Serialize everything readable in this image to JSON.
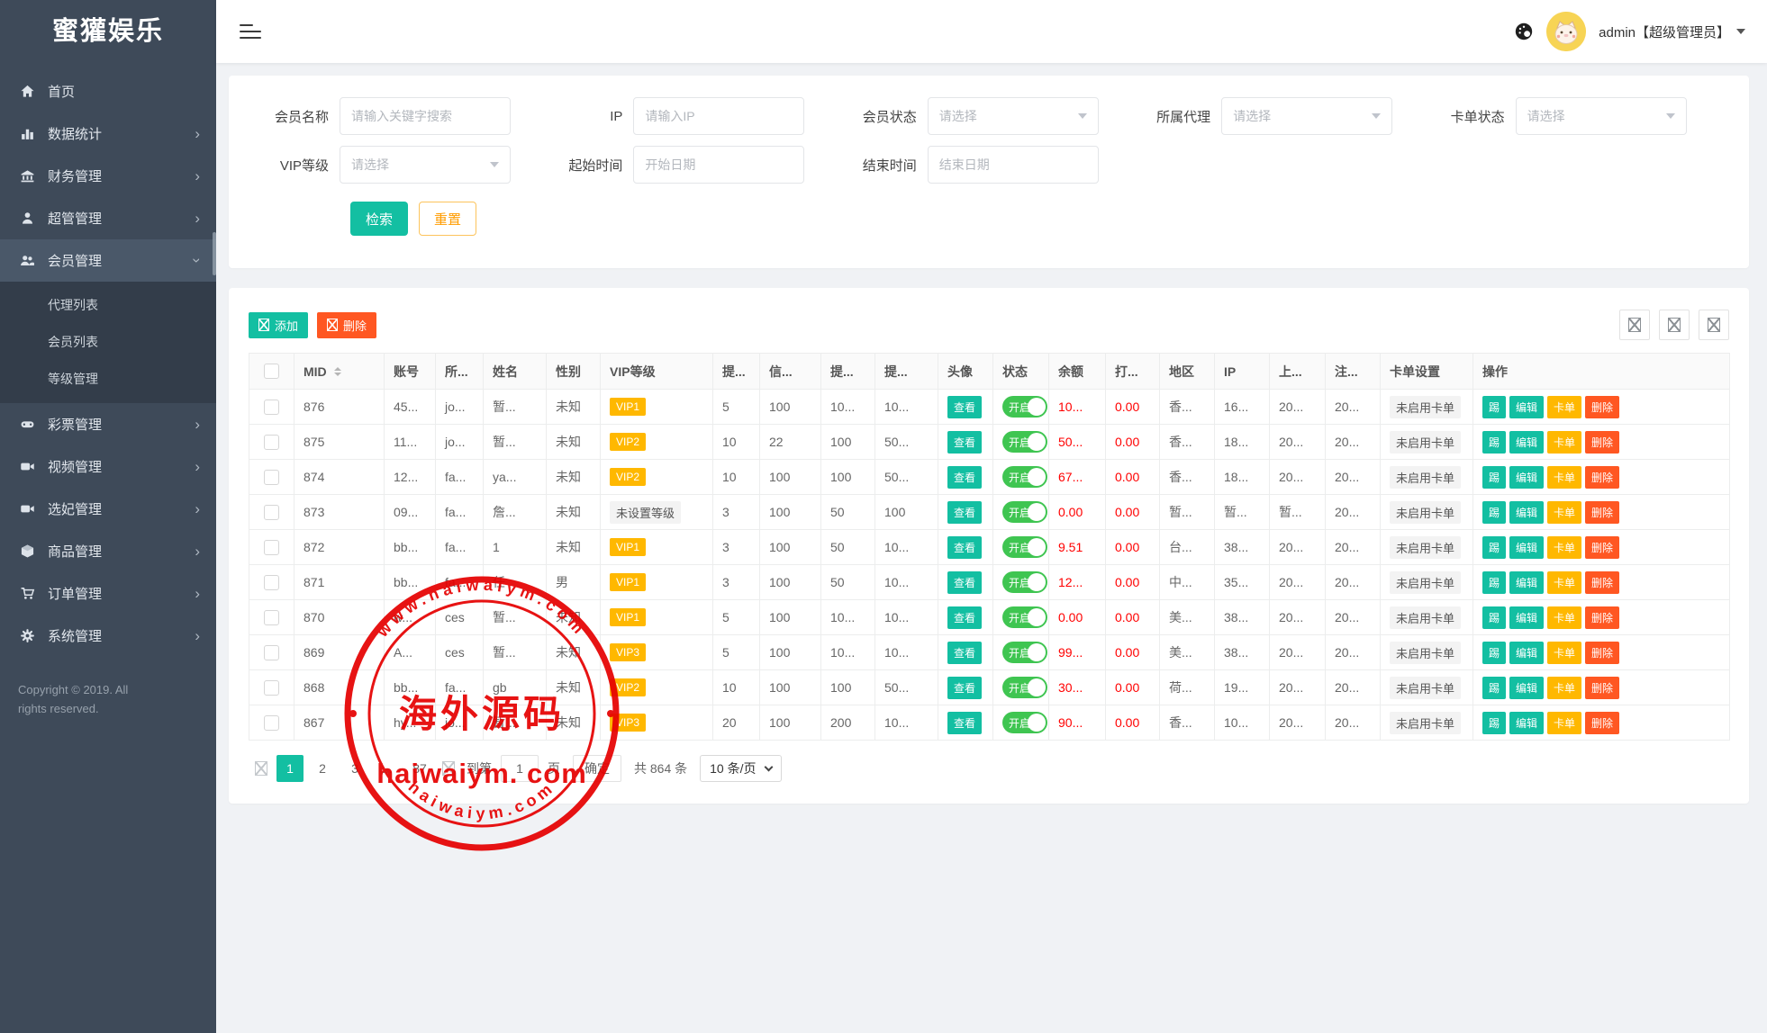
{
  "app": {
    "title": "蜜獾娱乐"
  },
  "topbar": {
    "user": "admin【超级管理员】"
  },
  "colors": {
    "teal": "#13bfa2",
    "orange_red": "#ff5722",
    "yellow": "#ffb800",
    "toggle_green": "#3fc551",
    "red_text": "#ff0000",
    "sidebar_bg": "#3e4a59",
    "seal_red": "#e60000"
  },
  "sidebar": {
    "items": [
      {
        "label": "首页",
        "icon": "home-icon"
      },
      {
        "label": "数据统计",
        "icon": "chart-icon"
      },
      {
        "label": "财务管理",
        "icon": "bank-icon"
      },
      {
        "label": "超管管理",
        "icon": "admin-icon"
      },
      {
        "label": "会员管理",
        "icon": "members-icon"
      },
      {
        "label": "彩票管理",
        "icon": "lottery-icon"
      },
      {
        "label": "视频管理",
        "icon": "video-icon"
      },
      {
        "label": "选妃管理",
        "icon": "video-icon"
      },
      {
        "label": "商品管理",
        "icon": "goods-icon"
      },
      {
        "label": "订单管理",
        "icon": "cart-icon"
      },
      {
        "label": "系统管理",
        "icon": "gear-icon"
      }
    ],
    "submenu": [
      "代理列表",
      "会员列表",
      "等级管理"
    ],
    "copyright": "Copyright © 2019. All rights reserved."
  },
  "filters": {
    "fields": [
      {
        "label": "会员名称",
        "type": "input",
        "placeholder": "请输入关键字搜索"
      },
      {
        "label": "IP",
        "type": "input",
        "placeholder": "请输入IP"
      },
      {
        "label": "会员状态",
        "type": "select",
        "placeholder": "请选择"
      },
      {
        "label": "所属代理",
        "type": "select",
        "placeholder": "请选择"
      },
      {
        "label": "卡单状态",
        "type": "select",
        "placeholder": "请选择"
      },
      {
        "label": "VIP等级",
        "type": "select",
        "placeholder": "请选择"
      },
      {
        "label": "起始时间",
        "type": "input",
        "placeholder": "开始日期"
      },
      {
        "label": "结束时间",
        "type": "input",
        "placeholder": "结束日期"
      }
    ],
    "search_label": "检索",
    "reset_label": "重置"
  },
  "table": {
    "toolbar": {
      "add_label": "添加",
      "delete_label": "删除"
    },
    "columns": [
      {
        "label": "MID",
        "sortable": true
      },
      {
        "label": "账号"
      },
      {
        "label": "所..."
      },
      {
        "label": "姓名"
      },
      {
        "label": "性别"
      },
      {
        "label": "VIP等级"
      },
      {
        "label": "提..."
      },
      {
        "label": "信..."
      },
      {
        "label": "提..."
      },
      {
        "label": "提..."
      },
      {
        "label": "头像"
      },
      {
        "label": "状态"
      },
      {
        "label": "余额"
      },
      {
        "label": "打..."
      },
      {
        "label": "地区"
      },
      {
        "label": "IP"
      },
      {
        "label": "上..."
      },
      {
        "label": "注..."
      },
      {
        "label": "卡单设置"
      },
      {
        "label": "操作"
      }
    ],
    "avatar_button": "查看",
    "status_on": "开启",
    "ops": [
      "踢",
      "编辑",
      "卡单",
      "删除"
    ],
    "rows": [
      {
        "mid": "876",
        "account": "45...",
        "agent": "jo...",
        "name": "暂...",
        "gender": "未知",
        "vip": "VIP1",
        "vip_type": "level",
        "c1": "5",
        "c2": "100",
        "c3": "10...",
        "c4": "10...",
        "balance": "10...",
        "c5": "0.00",
        "region": "香...",
        "ip": "16...",
        "c6": "20...",
        "c7": "20...",
        "card": "未启用卡单"
      },
      {
        "mid": "875",
        "account": "11...",
        "agent": "jo...",
        "name": "暂...",
        "gender": "未知",
        "vip": "VIP2",
        "vip_type": "level",
        "c1": "10",
        "c2": "22",
        "c3": "100",
        "c4": "50...",
        "balance": "50...",
        "c5": "0.00",
        "region": "香...",
        "ip": "18...",
        "c6": "20...",
        "c7": "20...",
        "card": "未启用卡单"
      },
      {
        "mid": "874",
        "account": "12...",
        "agent": "fa...",
        "name": "ya...",
        "gender": "未知",
        "vip": "VIP2",
        "vip_type": "level",
        "c1": "10",
        "c2": "100",
        "c3": "100",
        "c4": "50...",
        "balance": "67...",
        "c5": "0.00",
        "region": "香...",
        "ip": "18...",
        "c6": "20...",
        "c7": "20...",
        "card": "未启用卡单"
      },
      {
        "mid": "873",
        "account": "09...",
        "agent": "fa...",
        "name": "詹...",
        "gender": "未知",
        "vip": "未设置等级",
        "vip_type": "none",
        "c1": "3",
        "c2": "100",
        "c3": "50",
        "c4": "100",
        "balance": "0.00",
        "c5": "0.00",
        "region": "暂...",
        "ip": "暂...",
        "c6": "暂...",
        "c7": "20...",
        "card": "未启用卡单"
      },
      {
        "mid": "872",
        "account": "bb...",
        "agent": "fa...",
        "name": "1",
        "gender": "未知",
        "vip": "VIP1",
        "vip_type": "level",
        "c1": "3",
        "c2": "100",
        "c3": "50",
        "c4": "10...",
        "balance": "9.51",
        "c5": "0.00",
        "region": "台...",
        "ip": "38...",
        "c6": "20...",
        "c7": "20...",
        "card": "未启用卡单"
      },
      {
        "mid": "871",
        "account": "bb...",
        "agent": "fa...",
        "name": "任",
        "gender": "男",
        "vip": "VIP1",
        "vip_type": "level",
        "c1": "3",
        "c2": "100",
        "c3": "50",
        "c4": "10...",
        "balance": "12...",
        "c5": "0.00",
        "region": "中...",
        "ip": "35...",
        "c6": "20...",
        "c7": "20...",
        "card": "未启用卡单"
      },
      {
        "mid": "870",
        "account": "w...",
        "agent": "ces",
        "name": "暂...",
        "gender": "未知",
        "vip": "VIP1",
        "vip_type": "level",
        "c1": "5",
        "c2": "100",
        "c3": "10...",
        "c4": "10...",
        "balance": "0.00",
        "c5": "0.00",
        "region": "美...",
        "ip": "38...",
        "c6": "20...",
        "c7": "20...",
        "card": "未启用卡单"
      },
      {
        "mid": "869",
        "account": "A...",
        "agent": "ces",
        "name": "暂...",
        "gender": "未知",
        "vip": "VIP3",
        "vip_type": "level",
        "c1": "5",
        "c2": "100",
        "c3": "10...",
        "c4": "10...",
        "balance": "99...",
        "c5": "0.00",
        "region": "美...",
        "ip": "38...",
        "c6": "20...",
        "c7": "20...",
        "card": "未启用卡单"
      },
      {
        "mid": "868",
        "account": "bb...",
        "agent": "fa...",
        "name": "gb",
        "gender": "未知",
        "vip": "VIP2",
        "vip_type": "level",
        "c1": "10",
        "c2": "100",
        "c3": "100",
        "c4": "50...",
        "balance": "30...",
        "c5": "0.00",
        "region": "荷...",
        "ip": "19...",
        "c6": "20...",
        "c7": "20...",
        "card": "未启用卡单"
      },
      {
        "mid": "867",
        "account": "hy...",
        "agent": "jo...",
        "name": "暂...",
        "gender": "未知",
        "vip": "VIP3",
        "vip_type": "level",
        "c1": "20",
        "c2": "100",
        "c3": "200",
        "c4": "10...",
        "balance": "90...",
        "c5": "0.00",
        "region": "香...",
        "ip": "10...",
        "c6": "20...",
        "c7": "20...",
        "card": "未启用卡单"
      }
    ]
  },
  "pagination": {
    "pages": [
      "1",
      "2",
      "3",
      "...",
      "87"
    ],
    "active_page": "1",
    "goto_label": "到第",
    "goto_value": "1",
    "page_label": "页",
    "confirm_label": "确定",
    "total_label": "共 864 条",
    "per_page": "10 条/页"
  },
  "watermark": {
    "top_text": "www.haiwaiym.com",
    "center_text": "海外源码",
    "line_text": "haiwaiym. com",
    "bottom_text": "haiwaiym.com"
  }
}
